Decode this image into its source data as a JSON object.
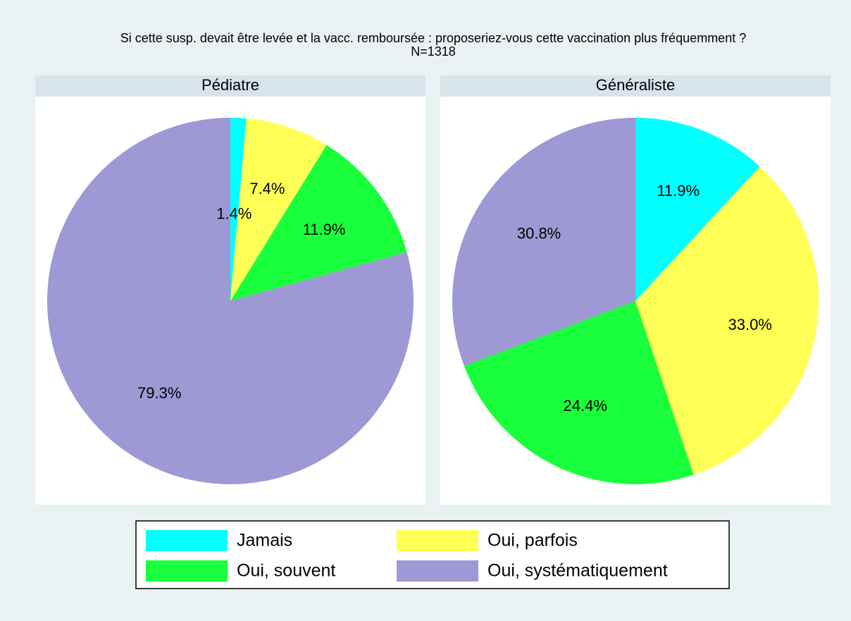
{
  "title": "Si cette susp. devait être levée et la vacc. remboursée : proposeriez-vous cette vaccination plus fréquemment ?",
  "subtitle": "N=1318",
  "legend": {
    "categories": [
      "Jamais",
      "Oui, parfois",
      "Oui, souvent",
      "Oui, systématiquement"
    ],
    "colors": [
      "#00ffff",
      "#ffff55",
      "#19ff3c",
      "#9e98d4"
    ]
  },
  "chart_data": [
    {
      "type": "pie",
      "title": "Pédiatre",
      "values": [
        1.4,
        7.4,
        11.9,
        79.3
      ],
      "value_labels": [
        "1.4%",
        "7.4%",
        "11.9%",
        "79.3%"
      ]
    },
    {
      "type": "pie",
      "title": "Généraliste",
      "values": [
        11.9,
        33.0,
        24.4,
        30.8
      ],
      "value_labels": [
        "11.9%",
        "33.0%",
        "24.4%",
        "30.8%"
      ]
    }
  ]
}
